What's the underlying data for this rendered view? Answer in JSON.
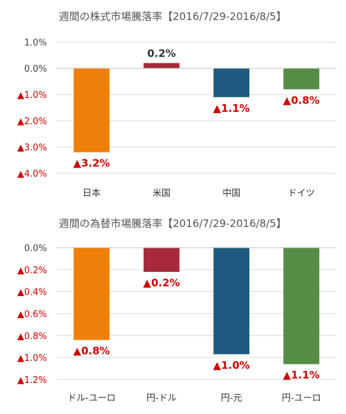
{
  "chart_data": [
    {
      "type": "bar",
      "title": "週間の株式市場騰落率【2016/7/29-2016/8/5】",
      "categories": [
        "日本",
        "米国",
        "中国",
        "ドイツ"
      ],
      "values": [
        -3.2,
        0.2,
        -1.1,
        -0.8
      ],
      "value_labels": [
        "▲3.2%",
        "0.2%",
        "▲1.1%",
        "▲0.8%"
      ],
      "colors": [
        "#f07f09",
        "#a7293a",
        "#1f5a80",
        "#548e45"
      ],
      "ylim": [
        -4.0,
        1.0
      ],
      "yticks": [
        1.0,
        0.0,
        -1.0,
        -2.0,
        -3.0,
        -4.0
      ],
      "ytick_labels": [
        "1.0%",
        "0.0%",
        "▲1.0%",
        "▲2.0%",
        "▲3.0%",
        "▲4.0%"
      ],
      "xlabel": "",
      "ylabel": "",
      "grid": true,
      "legend": "none"
    },
    {
      "type": "bar",
      "title": "週間の為替市場騰落率【2016/7/29-2016/8/5】",
      "categories": [
        "ドル-ユーロ",
        "円-ドル",
        "円-元",
        "円-ユーロ"
      ],
      "values": [
        -0.84,
        -0.22,
        -0.97,
        -1.06
      ],
      "value_labels": [
        "▲0.8%",
        "▲0.2%",
        "▲1.0%",
        "▲1.1%"
      ],
      "colors": [
        "#f07f09",
        "#a7293a",
        "#1f5a80",
        "#548e45"
      ],
      "ylim": [
        -1.2,
        0.0
      ],
      "yticks": [
        0.0,
        -0.2,
        -0.4,
        -0.6,
        -0.8,
        -1.0,
        -1.2
      ],
      "ytick_labels": [
        "0.0%",
        "▲0.2%",
        "▲0.4%",
        "▲0.6%",
        "▲0.8%",
        "▲1.0%",
        "▲1.2%"
      ],
      "xlabel": "",
      "ylabel": "",
      "grid": true,
      "legend": "none"
    }
  ],
  "style": {
    "positive_label_color": "#333333",
    "negative_label_color": "#cc0000",
    "negative_tick_color": "#cc0000"
  }
}
